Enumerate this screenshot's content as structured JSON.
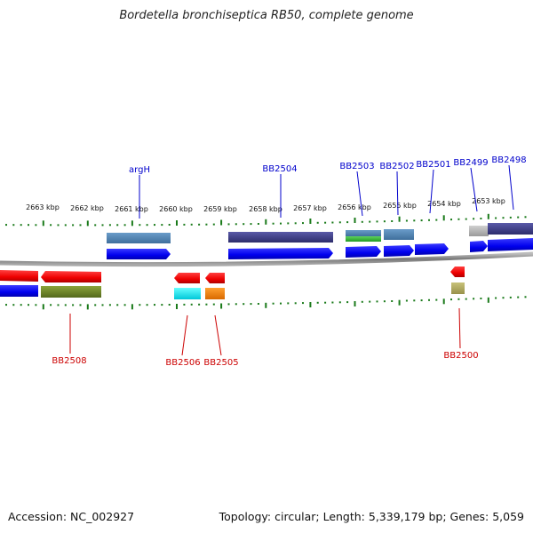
{
  "title": "Bordetella bronchiseptica RB50, complete genome",
  "footer": {
    "accession": "Accession: NC_002927",
    "topology": "Topology: circular; Length: 5,339,179 bp; Genes: 5,059"
  },
  "kbp_labels": [
    "2663 kbp",
    "2662 kbp",
    "2661 kbp",
    "2660 kbp",
    "2659 kbp",
    "2658 kbp",
    "2657 kbp",
    "2656 kbp",
    "2655 kbp",
    "2654 kbp",
    "2653 kbp"
  ],
  "gene_labels_top": [
    "argH",
    "BB2504",
    "BB2503",
    "BB2502",
    "BB2501",
    "BB2499",
    "BB2498"
  ],
  "gene_labels_bottom": [
    "BB2508",
    "BB2506",
    "BB2505",
    "BB2500"
  ],
  "colors": {
    "forward_gene": "#0000ff",
    "reverse_gene": "#ff0000",
    "top_label": "#0000cc",
    "bottom_label": "#cc0000",
    "tick": "#1a7a1a",
    "backbone": "#888888"
  }
}
